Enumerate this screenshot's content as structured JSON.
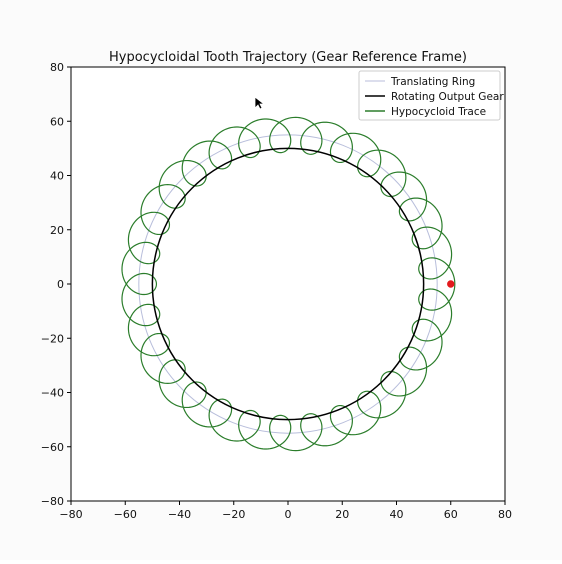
{
  "chart_data": {
    "type": "line",
    "title": "Hypocycloidal Tooth Trajectory (Gear Reference Frame)",
    "xlabel": "",
    "ylabel": "",
    "xlim": [
      -80,
      80
    ],
    "ylim": [
      -80,
      80
    ],
    "xticks": [
      -80,
      -60,
      -40,
      -20,
      0,
      20,
      40,
      60,
      80
    ],
    "yticks": [
      -80,
      -60,
      -40,
      -20,
      0,
      20,
      40,
      60,
      80
    ],
    "xtick_labels": [
      "−80",
      "−60",
      "−40",
      "−20",
      "0",
      "20",
      "40",
      "60",
      "80"
    ],
    "ytick_labels": [
      "−80",
      "−60",
      "−40",
      "−20",
      "0",
      "20",
      "40",
      "60",
      "80"
    ],
    "grid": false,
    "legend_position": "upper right",
    "series": [
      {
        "name": "Translating Ring",
        "kind": "circle",
        "center": [
          0,
          0
        ],
        "radius": 55,
        "color": "#b8bedb"
      },
      {
        "name": "Rotating Output Gear",
        "kind": "circle",
        "center": [
          0,
          0
        ],
        "radius": 50,
        "color": "#000000"
      },
      {
        "name": "Hypocycloid Trace",
        "kind": "loop-ring",
        "base_radius": 55,
        "loop_radius": 6.5,
        "lobes": 30,
        "color": "#2b7d2b"
      }
    ],
    "marker": {
      "x": 60,
      "y": 0,
      "color": "#e31a1c"
    }
  }
}
